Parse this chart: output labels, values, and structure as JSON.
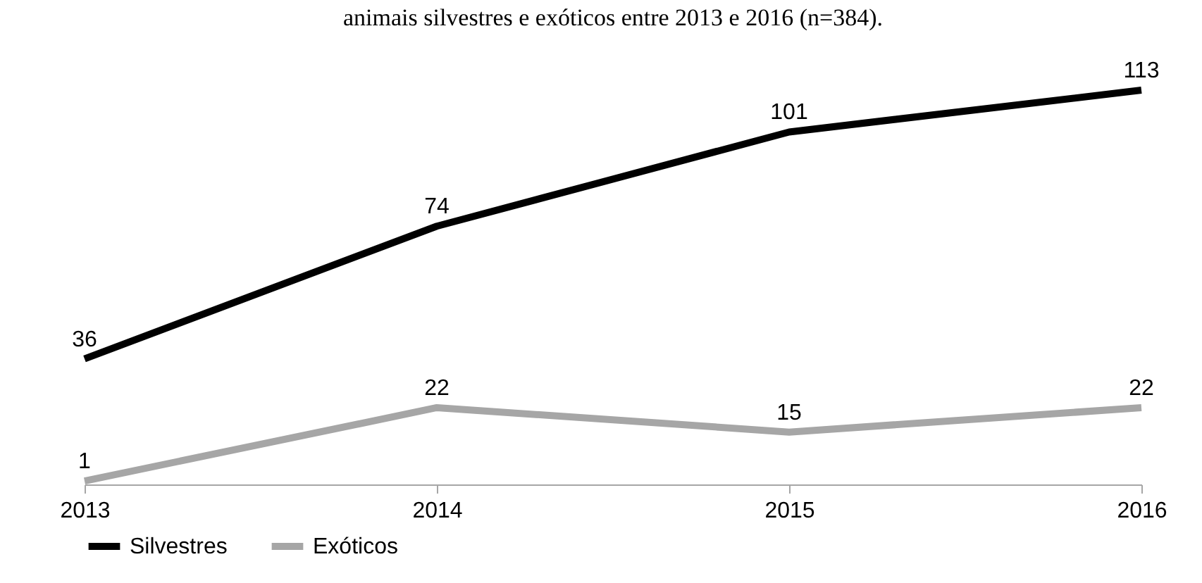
{
  "chart_data": {
    "type": "line",
    "title": "animais silvestres e exóticos entre 2013 e 2016 (n=384).",
    "categories": [
      "2013",
      "2014",
      "2015",
      "2016"
    ],
    "series": [
      {
        "name": "Silvestres",
        "color": "#000000",
        "values": [
          36,
          74,
          101,
          113
        ]
      },
      {
        "name": "Exóticos",
        "color": "#a6a6a6",
        "values": [
          1,
          22,
          15,
          22
        ]
      }
    ],
    "data_labels": true,
    "legend": "bottom",
    "grid": false,
    "marker": "none",
    "line_style": "solid"
  }
}
